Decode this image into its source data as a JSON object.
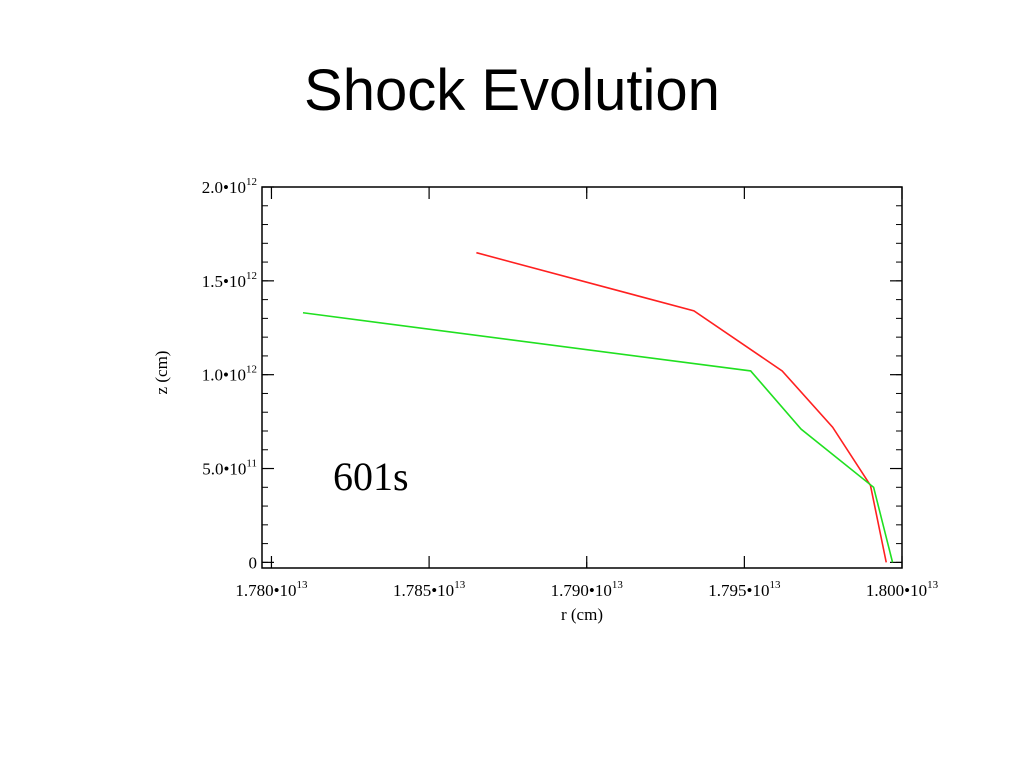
{
  "slide": {
    "title": "Shock Evolution"
  },
  "chart_data": {
    "type": "line",
    "title": "",
    "xlabel": "r (cm)",
    "ylabel": "z (cm)",
    "xlim": [
      17797000000000.0,
      18000000000000.0
    ],
    "ylim": [
      -30000000000.0,
      2000000000000.0
    ],
    "x_ticks": [
      {
        "value": 17800000000000.0,
        "mantissa": "1.780",
        "exponent": "13"
      },
      {
        "value": 17850000000000.0,
        "mantissa": "1.785",
        "exponent": "13"
      },
      {
        "value": 17900000000000.0,
        "mantissa": "1.790",
        "exponent": "13"
      },
      {
        "value": 17950000000000.0,
        "mantissa": "1.795",
        "exponent": "13"
      },
      {
        "value": 18000000000000.0,
        "mantissa": "1.800",
        "exponent": "13"
      }
    ],
    "y_ticks": [
      {
        "value": 0,
        "mantissa": "0",
        "exponent": ""
      },
      {
        "value": 500000000000.0,
        "mantissa": "5.0",
        "exponent": "11"
      },
      {
        "value": 1000000000000.0,
        "mantissa": "1.0",
        "exponent": "12"
      },
      {
        "value": 1500000000000.0,
        "mantissa": "1.5",
        "exponent": "12"
      },
      {
        "value": 2000000000000.0,
        "mantissa": "2.0",
        "exponent": "12"
      }
    ],
    "x_minor_step": 100000000000.0,
    "y_minor_step": 100000000000.0,
    "grid": false,
    "annotation": "601s",
    "series": [
      {
        "color": "#ff2020",
        "x": [
          17865000000000.0,
          17934000000000.0,
          17962000000000.0,
          17978000000000.0,
          17990000000000.0,
          17995000000000.0
        ],
        "y": [
          1650000000000.0,
          1340000000000.0,
          1020000000000.0,
          720000000000.0,
          410000000000.0,
          0.0
        ]
      },
      {
        "color": "#20e020",
        "x": [
          17810000000000.0,
          17952000000000.0,
          17968000000000.0,
          17991000000000.0,
          17997000000000.0
        ],
        "y": [
          1330000000000.0,
          1020000000000.0,
          710000000000.0,
          400000000000.0,
          0.0
        ]
      }
    ]
  }
}
